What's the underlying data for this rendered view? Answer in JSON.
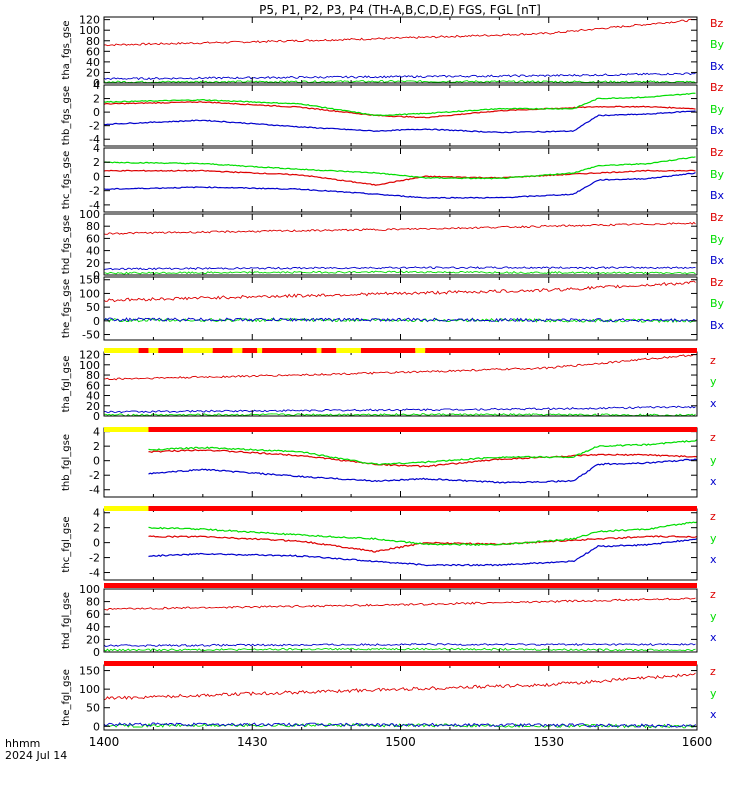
{
  "title": "P5, P1, P2, P3, P4 (TH-A,B,C,D,E) FGS, FGL [nT]",
  "time_axis": {
    "label": "hhmm",
    "date": "2024 Jul 14",
    "start": "1400",
    "end": "1600",
    "ticks": [
      "1400",
      "1430",
      "1500",
      "1530",
      "1600"
    ],
    "range_minutes": [
      0,
      120
    ]
  },
  "colors": {
    "z": "#dd0000",
    "y": "#00dd00",
    "x": "#0000cc",
    "bar_red": "#ff0000",
    "bar_yellow": "#ffff00",
    "axis": "#000000"
  },
  "chart_data": [
    {
      "type": "line",
      "ylabel": "tha_fgs_gse",
      "ylim": [
        0,
        125
      ],
      "yticks": [
        "0",
        "20",
        "40",
        "60",
        "80",
        "100",
        "120"
      ],
      "ytick_values": [
        0,
        20,
        40,
        60,
        80,
        100,
        120
      ],
      "data_start_min": 0,
      "noise": 0.3,
      "legend": [
        "Bz",
        "By",
        "Bx"
      ],
      "series": [
        {
          "name": "Bz",
          "t": [
            0,
            30,
            60,
            90,
            120
          ],
          "values": [
            72,
            78,
            85,
            94,
            120
          ]
        },
        {
          "name": "By",
          "t": [
            0,
            60,
            120
          ],
          "values": [
            2,
            3,
            2
          ]
        },
        {
          "name": "Bx",
          "t": [
            0,
            30,
            60,
            90,
            120
          ],
          "values": [
            8,
            10,
            12,
            14,
            18
          ]
        }
      ]
    },
    {
      "type": "line",
      "ylabel": "thb_fgs_gse",
      "ylim": [
        -5,
        4
      ],
      "yticks": [
        "-4",
        "-2",
        "0",
        "2",
        "4"
      ],
      "ytick_values": [
        -4,
        -2,
        0,
        2,
        4
      ],
      "data_start_min": 0,
      "noise": 0.15,
      "legend": [
        "Bz",
        "By",
        "Bx"
      ],
      "series": [
        {
          "name": "Bz",
          "t": [
            0,
            20,
            40,
            55,
            65,
            80,
            100,
            110,
            120
          ],
          "values": [
            1.2,
            1.5,
            0.7,
            -0.5,
            -0.8,
            0.2,
            0.8,
            0.8,
            0.5
          ]
        },
        {
          "name": "By",
          "t": [
            0,
            20,
            40,
            55,
            65,
            80,
            95,
            100,
            110,
            120
          ],
          "values": [
            1.5,
            1.8,
            1.2,
            -0.5,
            -0.2,
            0.5,
            0.5,
            2.0,
            2.2,
            2.8
          ]
        },
        {
          "name": "Bx",
          "t": [
            0,
            20,
            40,
            55,
            65,
            80,
            95,
            100,
            110,
            120
          ],
          "values": [
            -1.8,
            -1.2,
            -2.2,
            -2.8,
            -2.5,
            -3.0,
            -2.8,
            -0.5,
            -0.3,
            0.2
          ]
        }
      ]
    },
    {
      "type": "line",
      "ylabel": "thc_fgs_gse",
      "ylim": [
        -5,
        4
      ],
      "yticks": [
        "-4",
        "-2",
        "0",
        "2",
        "4"
      ],
      "ytick_values": [
        -4,
        -2,
        0,
        2,
        4
      ],
      "data_start_min": 0,
      "noise": 0.15,
      "legend": [
        "Bz",
        "By",
        "Bx"
      ],
      "series": [
        {
          "name": "Bz",
          "t": [
            0,
            20,
            40,
            55,
            65,
            80,
            100,
            110,
            120
          ],
          "values": [
            0.8,
            0.8,
            0.2,
            -1.2,
            0.0,
            -0.2,
            0.5,
            0.8,
            0.8
          ]
        },
        {
          "name": "By",
          "t": [
            0,
            20,
            40,
            55,
            65,
            80,
            95,
            100,
            110,
            120
          ],
          "values": [
            2.0,
            1.8,
            1.0,
            0.5,
            -0.2,
            -0.3,
            0.5,
            1.5,
            1.8,
            2.8
          ]
        },
        {
          "name": "Bx",
          "t": [
            0,
            20,
            40,
            55,
            65,
            80,
            95,
            100,
            110,
            120
          ],
          "values": [
            -1.8,
            -1.5,
            -1.8,
            -2.5,
            -3.0,
            -3.0,
            -2.5,
            -0.5,
            -0.3,
            0.5
          ]
        }
      ]
    },
    {
      "type": "line",
      "ylabel": "thd_fgs_gse",
      "ylim": [
        0,
        100
      ],
      "yticks": [
        "0",
        "20",
        "40",
        "60",
        "80",
        "100"
      ],
      "ytick_values": [
        0,
        20,
        40,
        60,
        80,
        100
      ],
      "data_start_min": 0,
      "noise": 0.3,
      "legend": [
        "Bz",
        "By",
        "Bx"
      ],
      "series": [
        {
          "name": "Bz",
          "t": [
            0,
            60,
            120
          ],
          "values": [
            68,
            75,
            85
          ]
        },
        {
          "name": "By",
          "t": [
            0,
            60,
            120
          ],
          "values": [
            3,
            5,
            3
          ]
        },
        {
          "name": "Bx",
          "t": [
            0,
            60,
            120
          ],
          "values": [
            10,
            12,
            12
          ]
        }
      ]
    },
    {
      "type": "line",
      "ylabel": "the_fgs_gse",
      "ylim": [
        -70,
        160
      ],
      "yticks": [
        "-50",
        "0",
        "50",
        "100",
        "150"
      ],
      "ytick_values": [
        -50,
        0,
        50,
        100,
        150
      ],
      "data_start_min": 0,
      "noise": 0.5,
      "legend": [
        "Bz",
        "By",
        "Bx"
      ],
      "series": [
        {
          "name": "Bz",
          "t": [
            0,
            30,
            60,
            90,
            120
          ],
          "values": [
            75,
            88,
            100,
            112,
            140
          ]
        },
        {
          "name": "By",
          "t": [
            0,
            60,
            120
          ],
          "values": [
            2,
            3,
            0
          ]
        },
        {
          "name": "Bx",
          "t": [
            0,
            60,
            120
          ],
          "values": [
            5,
            4,
            2
          ]
        }
      ]
    },
    {
      "type": "line",
      "ylabel": "tha_fgl_gse",
      "ylim": [
        0,
        125
      ],
      "yticks": [
        "0",
        "20",
        "40",
        "60",
        "80",
        "100",
        "120"
      ],
      "ytick_values": [
        0,
        20,
        40,
        60,
        80,
        100,
        120
      ],
      "data_start_min": 0,
      "noise": 0.3,
      "legend": [
        "z",
        "y",
        "x"
      ],
      "series": [
        {
          "name": "z",
          "t": [
            0,
            30,
            60,
            90,
            120
          ],
          "values": [
            72,
            78,
            85,
            94,
            120
          ]
        },
        {
          "name": "y",
          "t": [
            0,
            60,
            120
          ],
          "values": [
            2,
            3,
            2
          ]
        },
        {
          "name": "x",
          "t": [
            0,
            30,
            60,
            90,
            120
          ],
          "values": [
            8,
            10,
            12,
            14,
            18
          ]
        }
      ]
    },
    {
      "type": "line",
      "ylabel": "thb_fgl_gse",
      "ylim": [
        -5,
        4.5
      ],
      "yticks": [
        "-4",
        "-2",
        "0",
        "2",
        "4"
      ],
      "ytick_values": [
        -4,
        -2,
        0,
        2,
        4
      ],
      "data_start_min": 9,
      "noise": 0.2,
      "legend": [
        "z",
        "y",
        "x"
      ],
      "series": [
        {
          "name": "z",
          "t": [
            9,
            20,
            40,
            55,
            65,
            80,
            100,
            110,
            120
          ],
          "values": [
            1.2,
            1.5,
            0.7,
            -0.5,
            -0.8,
            0.2,
            0.8,
            0.8,
            0.5
          ]
        },
        {
          "name": "y",
          "t": [
            9,
            20,
            40,
            55,
            65,
            80,
            95,
            100,
            110,
            120
          ],
          "values": [
            1.5,
            1.8,
            1.2,
            -0.5,
            -0.2,
            0.5,
            0.5,
            2.0,
            2.2,
            2.8
          ]
        },
        {
          "name": "x",
          "t": [
            9,
            20,
            40,
            55,
            65,
            80,
            95,
            100,
            110,
            120
          ],
          "values": [
            -1.8,
            -1.2,
            -2.2,
            -2.8,
            -2.5,
            -3.0,
            -2.8,
            -0.5,
            -0.3,
            0.2
          ]
        }
      ]
    },
    {
      "type": "line",
      "ylabel": "thc_fgl_gse",
      "ylim": [
        -5,
        4.5
      ],
      "yticks": [
        "-4",
        "-2",
        "0",
        "2",
        "4"
      ],
      "ytick_values": [
        -4,
        -2,
        0,
        2,
        4
      ],
      "data_start_min": 9,
      "noise": 0.2,
      "legend": [
        "z",
        "y",
        "x"
      ],
      "series": [
        {
          "name": "z",
          "t": [
            9,
            20,
            40,
            55,
            65,
            80,
            100,
            110,
            120
          ],
          "values": [
            0.8,
            0.8,
            0.2,
            -1.2,
            0.0,
            -0.2,
            0.5,
            0.8,
            0.8
          ]
        },
        {
          "name": "y",
          "t": [
            9,
            20,
            40,
            55,
            65,
            80,
            95,
            100,
            110,
            120
          ],
          "values": [
            2.0,
            1.8,
            1.0,
            0.5,
            -0.2,
            -0.3,
            0.5,
            1.5,
            1.8,
            2.8
          ]
        },
        {
          "name": "x",
          "t": [
            9,
            20,
            40,
            55,
            65,
            80,
            95,
            100,
            110,
            120
          ],
          "values": [
            -1.8,
            -1.5,
            -1.8,
            -2.5,
            -3.0,
            -3.0,
            -2.5,
            -0.5,
            -0.3,
            0.5
          ]
        }
      ]
    },
    {
      "type": "line",
      "ylabel": "thd_fgl_gse",
      "ylim": [
        0,
        100
      ],
      "yticks": [
        "0",
        "20",
        "40",
        "60",
        "80",
        "100"
      ],
      "ytick_values": [
        0,
        20,
        40,
        60,
        80,
        100
      ],
      "data_start_min": 0,
      "noise": 0.3,
      "legend": [
        "z",
        "y",
        "x"
      ],
      "series": [
        {
          "name": "z",
          "t": [
            0,
            60,
            120
          ],
          "values": [
            68,
            75,
            85
          ]
        },
        {
          "name": "y",
          "t": [
            0,
            60,
            120
          ],
          "values": [
            3,
            5,
            3
          ]
        },
        {
          "name": "x",
          "t": [
            0,
            60,
            120
          ],
          "values": [
            10,
            12,
            12
          ]
        }
      ]
    },
    {
      "type": "line",
      "ylabel": "the_fgl_gse",
      "ylim": [
        -10,
        165
      ],
      "yticks": [
        "0",
        "50",
        "100",
        "150"
      ],
      "ytick_values": [
        0,
        50,
        100,
        150
      ],
      "data_start_min": 0,
      "noise": 0.5,
      "legend": [
        "z",
        "y",
        "x"
      ],
      "series": [
        {
          "name": "z",
          "t": [
            0,
            30,
            60,
            90,
            120
          ],
          "values": [
            75,
            88,
            100,
            112,
            140
          ]
        },
        {
          "name": "y",
          "t": [
            0,
            60,
            120
          ],
          "values": [
            2,
            3,
            0
          ]
        },
        {
          "name": "x",
          "t": [
            0,
            60,
            120
          ],
          "values": [
            5,
            4,
            2
          ]
        }
      ]
    }
  ],
  "mode_bars": [
    {
      "segments": [
        {
          "from": 0,
          "to": 7,
          "color": "yellow"
        },
        {
          "from": 7,
          "to": 9,
          "color": "red"
        },
        {
          "from": 9,
          "to": 11,
          "color": "yellow"
        },
        {
          "from": 11,
          "to": 16,
          "color": "red"
        },
        {
          "from": 16,
          "to": 22,
          "color": "yellow"
        },
        {
          "from": 22,
          "to": 26,
          "color": "red"
        },
        {
          "from": 26,
          "to": 28,
          "color": "yellow"
        },
        {
          "from": 28,
          "to": 31,
          "color": "red"
        },
        {
          "from": 31,
          "to": 32,
          "color": "yellow"
        },
        {
          "from": 32,
          "to": 43,
          "color": "red"
        },
        {
          "from": 43,
          "to": 44,
          "color": "yellow"
        },
        {
          "from": 44,
          "to": 47,
          "color": "red"
        },
        {
          "from": 47,
          "to": 52,
          "color": "yellow"
        },
        {
          "from": 52,
          "to": 63,
          "color": "red"
        },
        {
          "from": 63,
          "to": 65,
          "color": "yellow"
        },
        {
          "from": 65,
          "to": 120,
          "color": "red"
        }
      ]
    },
    {
      "segments": [
        {
          "from": 0,
          "to": 9,
          "color": "yellow"
        },
        {
          "from": 9,
          "to": 120,
          "color": "red"
        }
      ]
    },
    {
      "segments": [
        {
          "from": 0,
          "to": 9,
          "color": "yellow"
        },
        {
          "from": 9,
          "to": 120,
          "color": "red"
        }
      ]
    },
    {
      "segments": [
        {
          "from": 0,
          "to": 120,
          "color": "red"
        }
      ]
    },
    {
      "segments": [
        {
          "from": 0,
          "to": 120,
          "color": "red"
        }
      ]
    }
  ]
}
